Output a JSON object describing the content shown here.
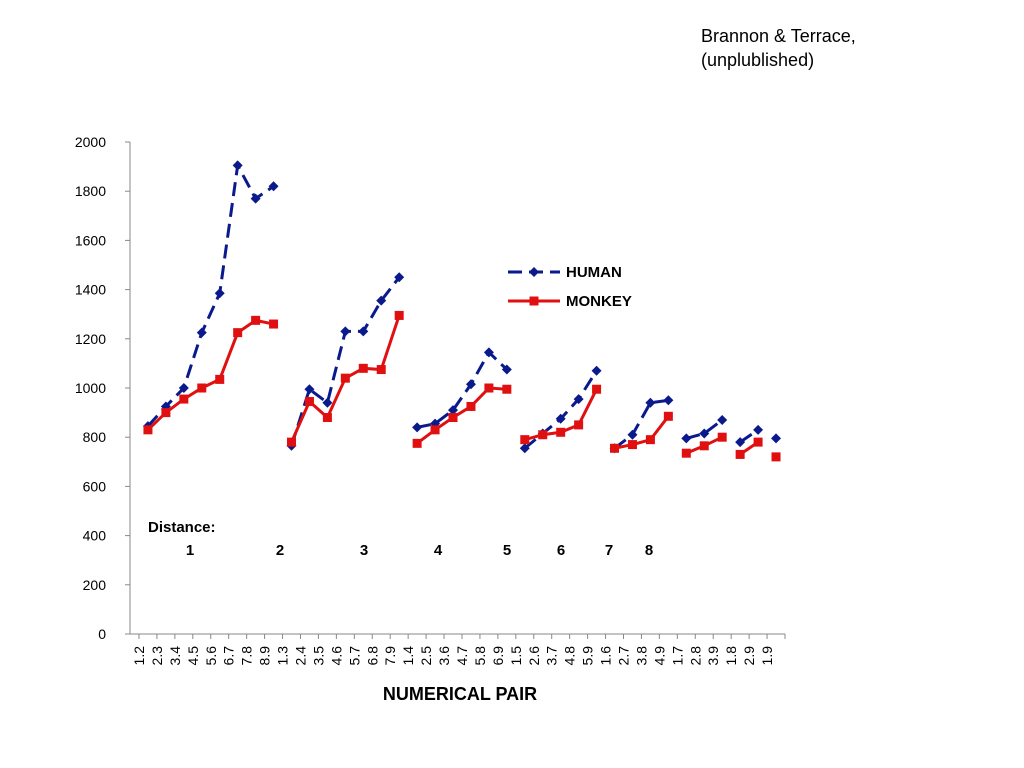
{
  "citation": {
    "line1": "Brannon & Terrace,",
    "line2": "(unplublished)"
  },
  "chart_data": {
    "type": "line",
    "xlabel": "NUMERICAL PAIR",
    "ylabel": "",
    "ylim": [
      0,
      2000
    ],
    "yticks": [
      0,
      200,
      400,
      600,
      800,
      1000,
      1200,
      1400,
      1600,
      1800,
      2000
    ],
    "grid": false,
    "legend_position": "upper-middle-right",
    "categories": [
      "1.2",
      "2.3",
      "3.4",
      "4.5",
      "5.6",
      "6.7",
      "7.8",
      "8.9",
      "1.3",
      "2.4",
      "3.5",
      "4.6",
      "5.7",
      "6.8",
      "7.9",
      "1.4",
      "2.5",
      "3.6",
      "4.7",
      "5.8",
      "6.9",
      "1.5",
      "2.6",
      "3.7",
      "4.8",
      "5.9",
      "1.6",
      "2.7",
      "3.8",
      "4.9",
      "1.7",
      "2.8",
      "3.9",
      "1.8",
      "2.9",
      "1.9"
    ],
    "distance_label": "Distance:",
    "groups": [
      {
        "distance": "1",
        "start": 0,
        "end": 7
      },
      {
        "distance": "2",
        "start": 8,
        "end": 14
      },
      {
        "distance": "3",
        "start": 15,
        "end": 20
      },
      {
        "distance": "4",
        "start": 21,
        "end": 25
      },
      {
        "distance": "5",
        "start": 26,
        "end": 29
      },
      {
        "distance": "6",
        "start": 30,
        "end": 32
      },
      {
        "distance": "7",
        "start": 33,
        "end": 34
      },
      {
        "distance": "8",
        "start": 35,
        "end": 35
      }
    ],
    "series": [
      {
        "name": "HUMAN",
        "color": "#0a1a8c",
        "marker": "diamond",
        "dash": true,
        "values": [
          845,
          925,
          1000,
          1225,
          1385,
          1905,
          1770,
          1820,
          765,
          995,
          940,
          1230,
          1230,
          1355,
          1450,
          840,
          855,
          910,
          1015,
          1145,
          1075,
          755,
          815,
          875,
          955,
          1070,
          755,
          810,
          940,
          950,
          795,
          815,
          870,
          780,
          830,
          795
        ]
      },
      {
        "name": "MONKEY",
        "color": "#e01010",
        "marker": "square",
        "dash": false,
        "values": [
          830,
          900,
          955,
          1000,
          1035,
          1225,
          1275,
          1260,
          780,
          945,
          880,
          1040,
          1080,
          1075,
          1295,
          775,
          830,
          880,
          925,
          1000,
          995,
          790,
          810,
          820,
          850,
          995,
          755,
          770,
          790,
          885,
          735,
          765,
          800,
          730,
          780,
          720
        ]
      }
    ]
  }
}
